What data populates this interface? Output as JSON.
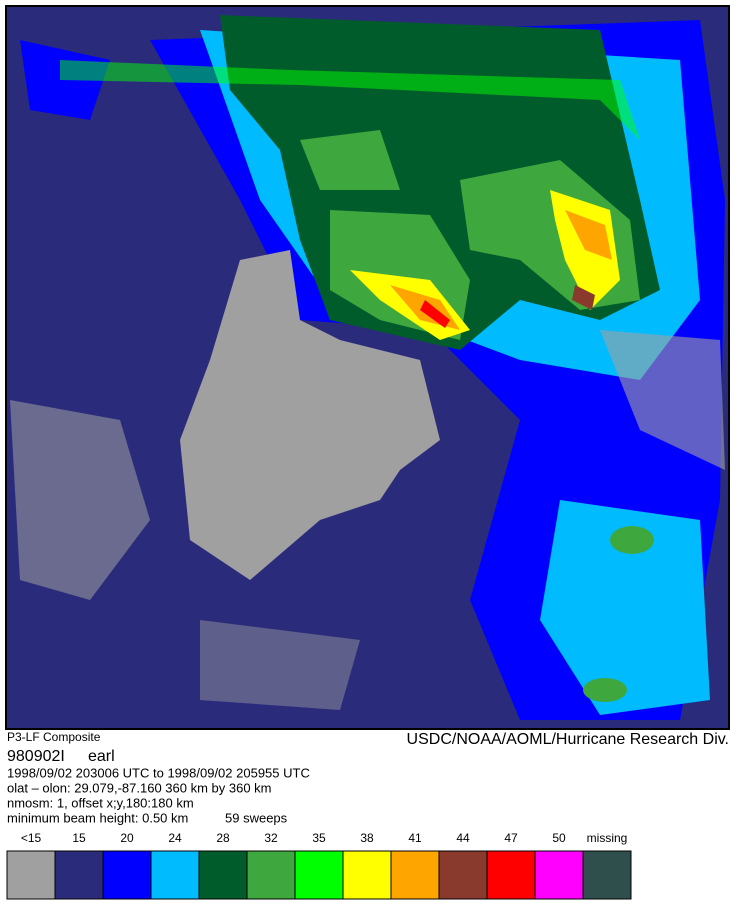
{
  "header": {
    "product": "P3-LF Composite",
    "credit": "USDC/NOAA/AOML/Hurricane Research Div."
  },
  "storm": {
    "id": "980902I",
    "name": "earl"
  },
  "info": [
    "1998/09/02 203006 UTC to 1998/09/02 205955 UTC",
    "olat – olon: 29.079,-87.160  360 km by 360 km",
    "nmosm: 1, offset x;y,180:180 km",
    "minimum beam height: 0.50 km",
    "59 sweeps"
  ],
  "legend": [
    {
      "label": "<15",
      "color": "#a0a0a0"
    },
    {
      "label": "15",
      "color": "#2b2b7c"
    },
    {
      "label": "20",
      "color": "#0000ff"
    },
    {
      "label": "24",
      "color": "#00bcff"
    },
    {
      "label": "28",
      "color": "#005c2a"
    },
    {
      "label": "32",
      "color": "#3ea83e"
    },
    {
      "label": "35",
      "color": "#00ff00"
    },
    {
      "label": "38",
      "color": "#ffff00"
    },
    {
      "label": "41",
      "color": "#ffa500"
    },
    {
      "label": "44",
      "color": "#8a3a2c"
    },
    {
      "label": "47",
      "color": "#ff0000"
    },
    {
      "label": "50",
      "color": "#ff00ff"
    },
    {
      "label": "missing",
      "color": "#2f4f4c"
    }
  ]
}
